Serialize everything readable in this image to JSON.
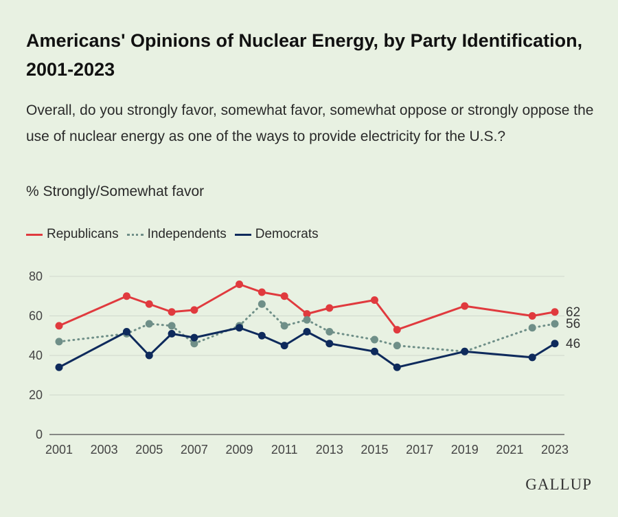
{
  "title": "Americans' Opinions of Nuclear Energy, by Party Identification, 2001-2023",
  "subtitle": "Overall, do you strongly favor, somewhat favor, somewhat oppose or strongly oppose the use of nuclear energy as one of the ways to provide electricity for the U.S.?",
  "measure_label": "% Strongly/Somewhat favor",
  "brand": "GALLUP",
  "legend": [
    {
      "label": "Republicans",
      "color": "#e03a3e",
      "style": "solid"
    },
    {
      "label": "Independents",
      "color": "#6f8f88",
      "style": "dotted"
    },
    {
      "label": "Democrats",
      "color": "#0e2a5c",
      "style": "solid"
    }
  ],
  "chart_data": {
    "type": "line",
    "title": "Americans' Opinions of Nuclear Energy, by Party Identification, 2001-2023",
    "xlabel": "",
    "ylabel": "",
    "xlim": [
      2001,
      2023
    ],
    "ylim": [
      0,
      80
    ],
    "x_ticks": [
      2001,
      2003,
      2005,
      2007,
      2009,
      2011,
      2013,
      2015,
      2017,
      2019,
      2021,
      2023
    ],
    "y_ticks": [
      0,
      20,
      40,
      60,
      80
    ],
    "grid": true,
    "legend_position": "top-left",
    "series": [
      {
        "name": "Republicans",
        "color": "#e03a3e",
        "style": "solid",
        "end_label": "62",
        "points": [
          [
            2001,
            55
          ],
          [
            2004,
            70
          ],
          [
            2005,
            66
          ],
          [
            2006,
            62
          ],
          [
            2007,
            63
          ],
          [
            2009,
            76
          ],
          [
            2010,
            72
          ],
          [
            2011,
            70
          ],
          [
            2012,
            61
          ],
          [
            2013,
            64
          ],
          [
            2015,
            68
          ],
          [
            2016,
            53
          ],
          [
            2019,
            65
          ],
          [
            2022,
            60
          ],
          [
            2023,
            62
          ]
        ]
      },
      {
        "name": "Independents",
        "color": "#6f8f88",
        "style": "dotted",
        "end_label": "56",
        "points": [
          [
            2001,
            47
          ],
          [
            2004,
            51
          ],
          [
            2005,
            56
          ],
          [
            2006,
            55
          ],
          [
            2007,
            46
          ],
          [
            2009,
            55
          ],
          [
            2010,
            66
          ],
          [
            2011,
            55
          ],
          [
            2012,
            58
          ],
          [
            2013,
            52
          ],
          [
            2015,
            48
          ],
          [
            2016,
            45
          ],
          [
            2019,
            42
          ],
          [
            2022,
            54
          ],
          [
            2023,
            56
          ]
        ]
      },
      {
        "name": "Democrats",
        "color": "#0e2a5c",
        "style": "solid",
        "end_label": "46",
        "points": [
          [
            2001,
            34
          ],
          [
            2004,
            52
          ],
          [
            2005,
            40
          ],
          [
            2006,
            51
          ],
          [
            2007,
            49
          ],
          [
            2009,
            54
          ],
          [
            2010,
            50
          ],
          [
            2011,
            45
          ],
          [
            2012,
            52
          ],
          [
            2013,
            46
          ],
          [
            2015,
            42
          ],
          [
            2016,
            34
          ],
          [
            2019,
            42
          ],
          [
            2022,
            39
          ],
          [
            2023,
            46
          ]
        ]
      }
    ]
  }
}
